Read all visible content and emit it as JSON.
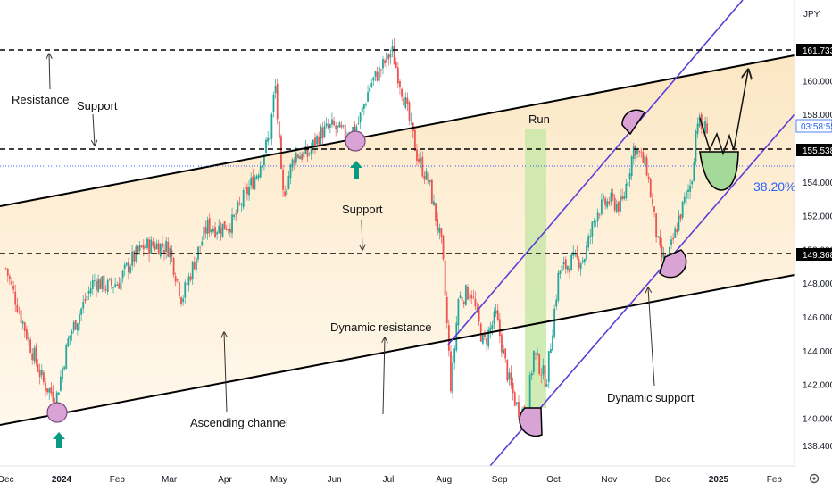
{
  "header": {
    "currency": "JPY"
  },
  "colors": {
    "up_candle": "#26a69a",
    "down_candle": "#ef5350",
    "channel_fill": "#fde8c4",
    "channel_line": "#000000",
    "purple_line": "#5b3fd6",
    "circle_fill": "#d9a3d6",
    "green_fill": "#a5d99a",
    "run_fill": "#c9e8a8",
    "last_price_line": "#2962ff",
    "arrow_green": "#089981"
  },
  "annotations": {
    "resistance": "Resistance",
    "support_top": "Support",
    "support_mid": "Support",
    "run": "Run",
    "dynamic_resistance": "Dynamic resistance",
    "dynamic_support": "Dynamic support",
    "ascending_channel": "Ascending channel",
    "fib": "38.20%"
  },
  "price_labels": {
    "resistance_level": "161.733",
    "current_price": "155.538",
    "countdown": "03:58:55",
    "support_level": "149.368"
  },
  "chart_data": {
    "type": "line",
    "title": "",
    "xlabel": "",
    "ylabel": "",
    "ylim": [
      137.2,
      164.8
    ],
    "y_ticks": [
      "138.400",
      "140.000",
      "142.000",
      "144.000",
      "146.000",
      "148.000",
      "150.000",
      "152.000",
      "154.000",
      "156.000",
      "158.000",
      "160.000"
    ],
    "y_tick_values": [
      138.4,
      140,
      142,
      144,
      146,
      148,
      150,
      152,
      154,
      156,
      158,
      160
    ],
    "x_ticks": [
      "Dec",
      "2024",
      "Feb",
      "Mar",
      "Apr",
      "May",
      "Jun",
      "Jul",
      "Aug",
      "Sep",
      "Oct",
      "Nov",
      "Dec",
      "2025",
      "Feb"
    ],
    "horizontal_levels": [
      161.733,
      155.538,
      149.368
    ],
    "last_price": 154.5,
    "series": [
      {
        "dates": [
          "2023-12-01",
          "2023-12-08",
          "2023-12-15",
          "2023-12-22",
          "2023-12-29",
          "2024-01-05",
          "2024-01-12",
          "2024-01-19",
          "2024-01-26",
          "2024-02-02",
          "2024-02-09",
          "2024-02-16",
          "2024-02-23",
          "2024-03-01",
          "2024-03-08",
          "2024-03-15",
          "2024-03-22",
          "2024-03-29",
          "2024-04-05",
          "2024-04-12",
          "2024-04-19",
          "2024-04-26",
          "2024-04-29",
          "2024-05-03",
          "2024-05-10",
          "2024-05-17",
          "2024-05-24",
          "2024-05-31",
          "2024-06-07",
          "2024-06-14",
          "2024-06-21",
          "2024-06-28",
          "2024-07-03",
          "2024-07-10",
          "2024-07-17",
          "2024-07-24",
          "2024-07-31",
          "2024-08-05",
          "2024-08-09",
          "2024-08-16",
          "2024-08-23",
          "2024-08-30",
          "2024-09-06",
          "2024-09-11",
          "2024-09-16",
          "2024-09-20",
          "2024-09-27",
          "2024-10-04",
          "2024-10-11",
          "2024-10-18",
          "2024-10-25",
          "2024-11-01",
          "2024-11-08",
          "2024-11-15",
          "2024-11-22",
          "2024-11-29",
          "2024-12-03",
          "2024-12-10",
          "2024-12-17",
          "2024-12-20",
          "2024-12-23",
          "2024-12-26"
        ],
        "values": [
          148.9,
          146.5,
          144.2,
          142.1,
          141.2,
          144.8,
          146.5,
          148.2,
          147.8,
          148.1,
          149.4,
          150.2,
          150.3,
          150.1,
          147.1,
          149.3,
          151.4,
          151.3,
          151.6,
          153.2,
          154.6,
          156.8,
          159.9,
          153.1,
          155.7,
          155.6,
          156.9,
          157.3,
          156.8,
          157.4,
          159.8,
          160.9,
          161.8,
          158.9,
          155.6,
          153.8,
          150.0,
          141.7,
          147.1,
          147.6,
          144.4,
          146.1,
          142.3,
          140.6,
          140.4,
          143.9,
          142.2,
          148.7,
          149.3,
          149.5,
          152.3,
          152.9,
          152.6,
          156.2,
          154.8,
          149.8,
          149.1,
          151.9,
          154.1,
          157.9,
          157.0,
          157.4
        ]
      }
    ]
  }
}
